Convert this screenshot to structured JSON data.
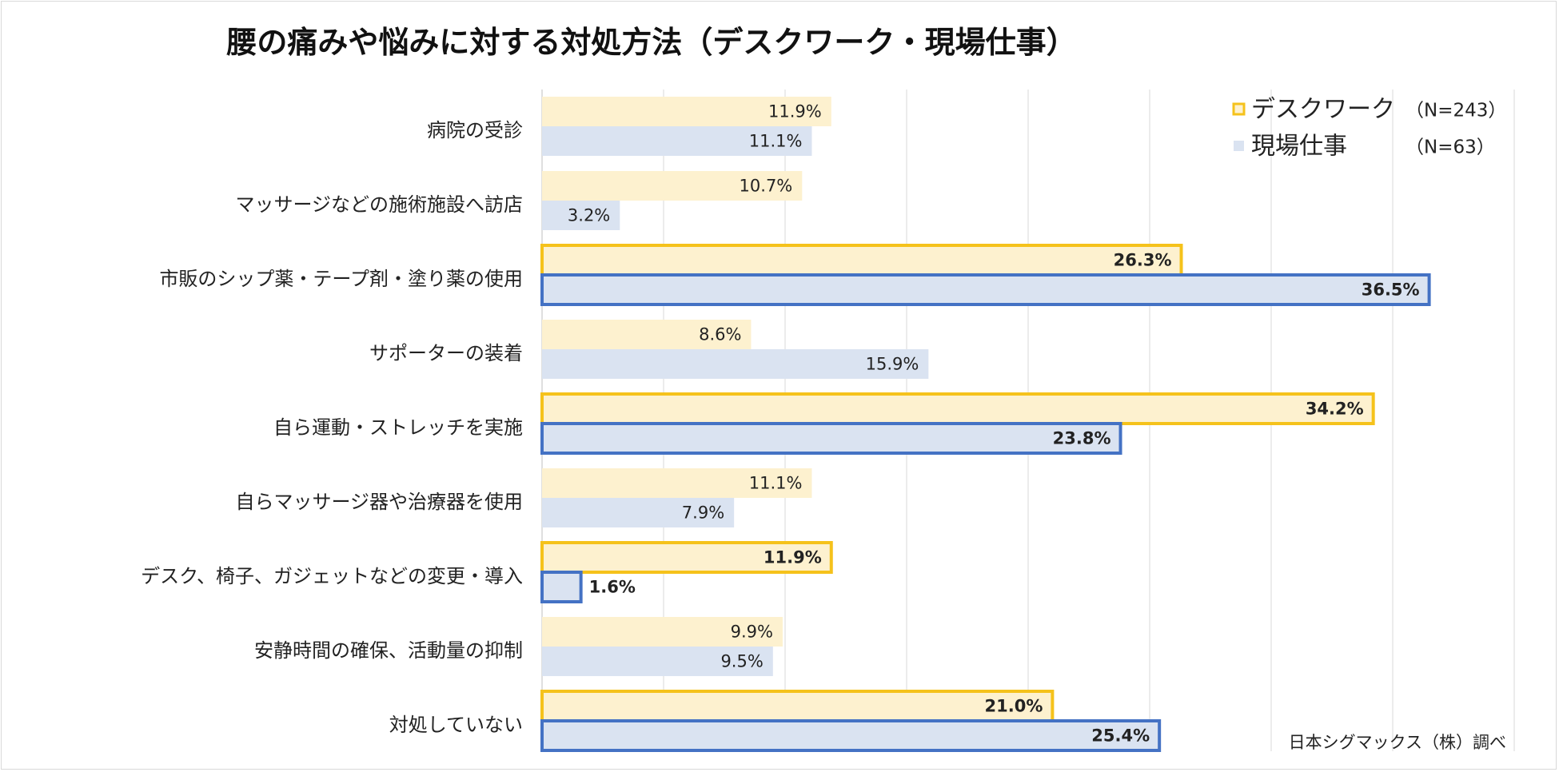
{
  "chart_data": {
    "type": "bar",
    "orientation": "horizontal",
    "title": "腰の痛みや悩みに対する対処方法（デスクワーク・現場仕事）",
    "categories": [
      "病院の受診",
      "マッサージなどの施術施設へ訪店",
      "市販のシップ薬・テープ剤・塗り薬の使用",
      "サポーターの装着",
      "自ら運動・ストレッチを実施",
      "自らマッサージ器や治療器を使用",
      "デスク、椅子、ガジェットなどの変更・導入",
      "安静時間の確保、活動量の抑制",
      "対処していない"
    ],
    "series": [
      {
        "name": "デスクワーク",
        "n_label": "（N=243）",
        "values": [
          11.9,
          10.7,
          26.3,
          8.6,
          34.2,
          11.1,
          11.9,
          9.9,
          21.0
        ],
        "value_labels": [
          "11.9%",
          "10.7%",
          "26.3%",
          "8.6%",
          "34.2%",
          "11.1%",
          "11.9%",
          "9.9%",
          "21.0%"
        ],
        "fill": "#fdf1cf",
        "highlight_border": "#f5c21b"
      },
      {
        "name": "現場仕事",
        "n_label": "（N=63）",
        "values": [
          11.1,
          3.2,
          36.5,
          15.9,
          23.8,
          7.9,
          1.6,
          9.5,
          25.4
        ],
        "value_labels": [
          "11.1%",
          "3.2%",
          "36.5%",
          "15.9%",
          "23.8%",
          "7.9%",
          "1.6%",
          "9.5%",
          "25.4%"
        ],
        "fill": "#dae3f1",
        "highlight_border": "#4472c4"
      }
    ],
    "highlighted_categories": [
      2,
      4,
      6,
      8
    ],
    "xlim": [
      0,
      40
    ],
    "grid": true,
    "legend_position": "top-right"
  },
  "source": "日本シグマックス（株）調べ"
}
